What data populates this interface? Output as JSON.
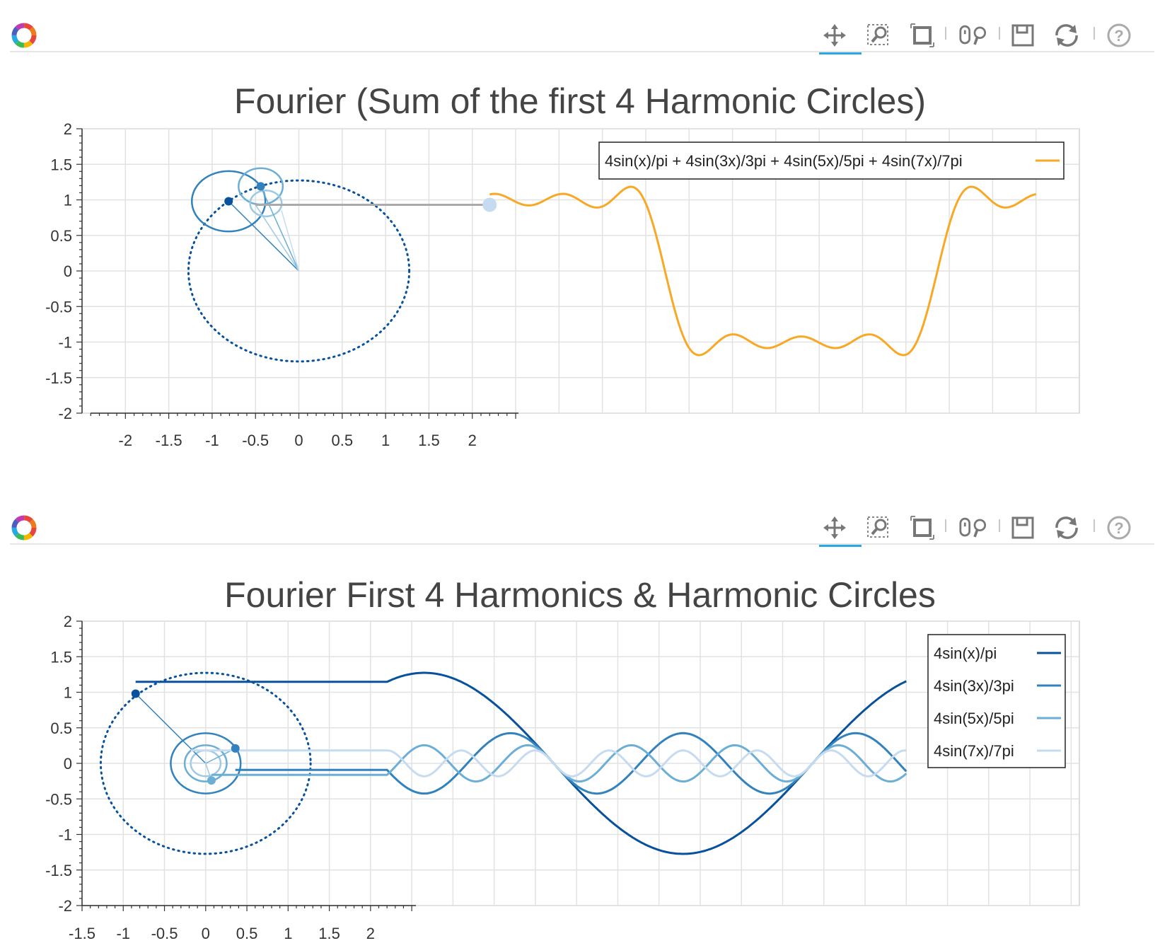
{
  "toolbar": {
    "logo_icon": "bokeh-logo-icon",
    "tools": [
      {
        "name": "pan-tool",
        "icon": "pan-icon",
        "active": true
      },
      {
        "name": "box-zoom-tool",
        "icon": "box-zoom-icon",
        "active": false
      },
      {
        "name": "resize-tool",
        "icon": "resize-icon",
        "active": false
      },
      {
        "name": "wheel-zoom-tool",
        "icon": "wheel-zoom-icon",
        "active": false
      },
      {
        "name": "save-tool",
        "icon": "save-icon",
        "active": false
      },
      {
        "name": "reset-tool",
        "icon": "reset-icon",
        "active": false
      },
      {
        "name": "help-tool",
        "icon": "help-icon",
        "active": false
      }
    ],
    "active_color": "#26aae1"
  },
  "chart_data": [
    {
      "type": "line",
      "title": "Fourier (Sum of the first 4 Harmonic Circles)",
      "xlabel": "",
      "ylabel": "",
      "xlim": [
        -2.5,
        9.0
      ],
      "ylim": [
        -2,
        2
      ],
      "x_ticks": [
        "-2",
        "-1.5",
        "-1",
        "-0.5",
        "0",
        "0.5",
        "1",
        "1.5",
        "2"
      ],
      "y_ticks": [
        "2",
        "1.5",
        "1",
        "0.5",
        "0",
        "-0.5",
        "-1",
        "-1.5",
        "-2"
      ],
      "grid": true,
      "legend_placement": "top-right",
      "circles": [
        {
          "cx": 0,
          "cy": 0,
          "r": 1.273,
          "style": "dotted",
          "color": "#08519c"
        },
        {
          "cx": -0.81,
          "cy": 0.98,
          "r": 0.424,
          "color": "#3182bd"
        },
        {
          "cx": -0.44,
          "cy": 1.19,
          "r": 0.255,
          "color": "#6baed6"
        },
        {
          "cx": -0.38,
          "cy": 0.95,
          "r": 0.182,
          "color": "#9ecae1"
        }
      ],
      "arms": [
        {
          "from": [
            0,
            0
          ],
          "to": [
            -0.81,
            0.98
          ],
          "color": "#3182bd"
        },
        {
          "from": [
            0,
            0
          ],
          "to": [
            -0.44,
            1.19
          ],
          "color": "#6baed6"
        },
        {
          "from": [
            0,
            0
          ],
          "to": [
            -0.5,
            0.93
          ],
          "color": "#9ecae1"
        },
        {
          "from": [
            0,
            0
          ],
          "to": [
            -0.2,
            0.85
          ],
          "color": "#c6dbef"
        }
      ],
      "arm_points": [
        {
          "x": -0.81,
          "y": 0.98,
          "color": "#08519c"
        },
        {
          "x": -0.44,
          "y": 1.19,
          "color": "#3182bd"
        }
      ],
      "connector": {
        "from": [
          -0.5,
          0.93
        ],
        "to": [
          2.2,
          0.93
        ],
        "color": "#aaaaaa"
      },
      "marker": {
        "x": 2.2,
        "y": 0.93,
        "color": "#c6dbef"
      },
      "series": [
        {
          "name": "4sin(x)/pi + 4sin(3x)/3pi + 4sin(5x)/5pi + 4sin(7x)/7pi",
          "color": "#f9a825",
          "x_start": 2.2,
          "x_end": 8.5,
          "phase": 1.12,
          "harmonics": [
            1,
            3,
            5,
            7
          ]
        }
      ]
    },
    {
      "type": "line",
      "title": "Fourier First 4 Harmonics & Harmonic Circles",
      "xlabel": "",
      "ylabel": "",
      "xlim": [
        -1.5,
        10.6
      ],
      "ylim": [
        -2,
        2
      ],
      "x_ticks": [
        "-1.5",
        "-1",
        "-0.5",
        "0",
        "0.5",
        "1",
        "1.5",
        "2"
      ],
      "y_ticks": [
        "2",
        "1.5",
        "1",
        "0.5",
        "0",
        "-0.5",
        "-1",
        "-1.5",
        "-2"
      ],
      "grid": true,
      "legend_placement": "top-right",
      "circles": [
        {
          "cx": 0,
          "cy": 0,
          "r": 1.273,
          "style": "dotted",
          "color": "#08519c"
        },
        {
          "cx": 0,
          "cy": 0,
          "r": 0.424,
          "color": "#3182bd"
        },
        {
          "cx": 0,
          "cy": 0,
          "r": 0.255,
          "color": "#6baed6"
        },
        {
          "cx": 0,
          "cy": 0,
          "r": 0.182,
          "color": "#9ecae1"
        }
      ],
      "arms": [
        {
          "from": [
            0,
            0
          ],
          "to": [
            -0.85,
            0.98
          ],
          "color": "#3182bd"
        },
        {
          "from": [
            0,
            0
          ],
          "to": [
            0.36,
            0.21
          ],
          "color": "#6baed6"
        },
        {
          "from": [
            0,
            0
          ],
          "to": [
            0.07,
            -0.24
          ],
          "color": "#9ecae1"
        },
        {
          "from": [
            0,
            0
          ],
          "to": [
            -0.18,
            0.01
          ],
          "color": "#c6dbef"
        }
      ],
      "arm_points": [
        {
          "x": -0.85,
          "y": 0.98,
          "color": "#08519c"
        },
        {
          "x": 0.36,
          "y": 0.21,
          "color": "#3182bd"
        },
        {
          "x": 0.07,
          "y": -0.24,
          "color": "#6baed6"
        }
      ],
      "series": [
        {
          "name": "4sin(x)/pi",
          "color": "#08519c",
          "harmonic": 1,
          "x_start": 2.2,
          "x_end": 8.5,
          "phase": 1.12,
          "connector_from": -0.85
        },
        {
          "name": "4sin(3x)/3pi",
          "color": "#3182bd",
          "harmonic": 3,
          "x_start": 2.2,
          "x_end": 8.5,
          "phase": 1.12,
          "connector_from": 0.36
        },
        {
          "name": "4sin(5x)/5pi",
          "color": "#6baed6",
          "harmonic": 5,
          "x_start": 2.2,
          "x_end": 8.5,
          "phase": 1.12,
          "connector_from": 0.07
        },
        {
          "name": "4sin(7x)/7pi",
          "color": "#c6dbef",
          "harmonic": 7,
          "x_start": 2.2,
          "x_end": 8.5,
          "phase": 1.12,
          "connector_from": -0.18
        }
      ]
    }
  ]
}
